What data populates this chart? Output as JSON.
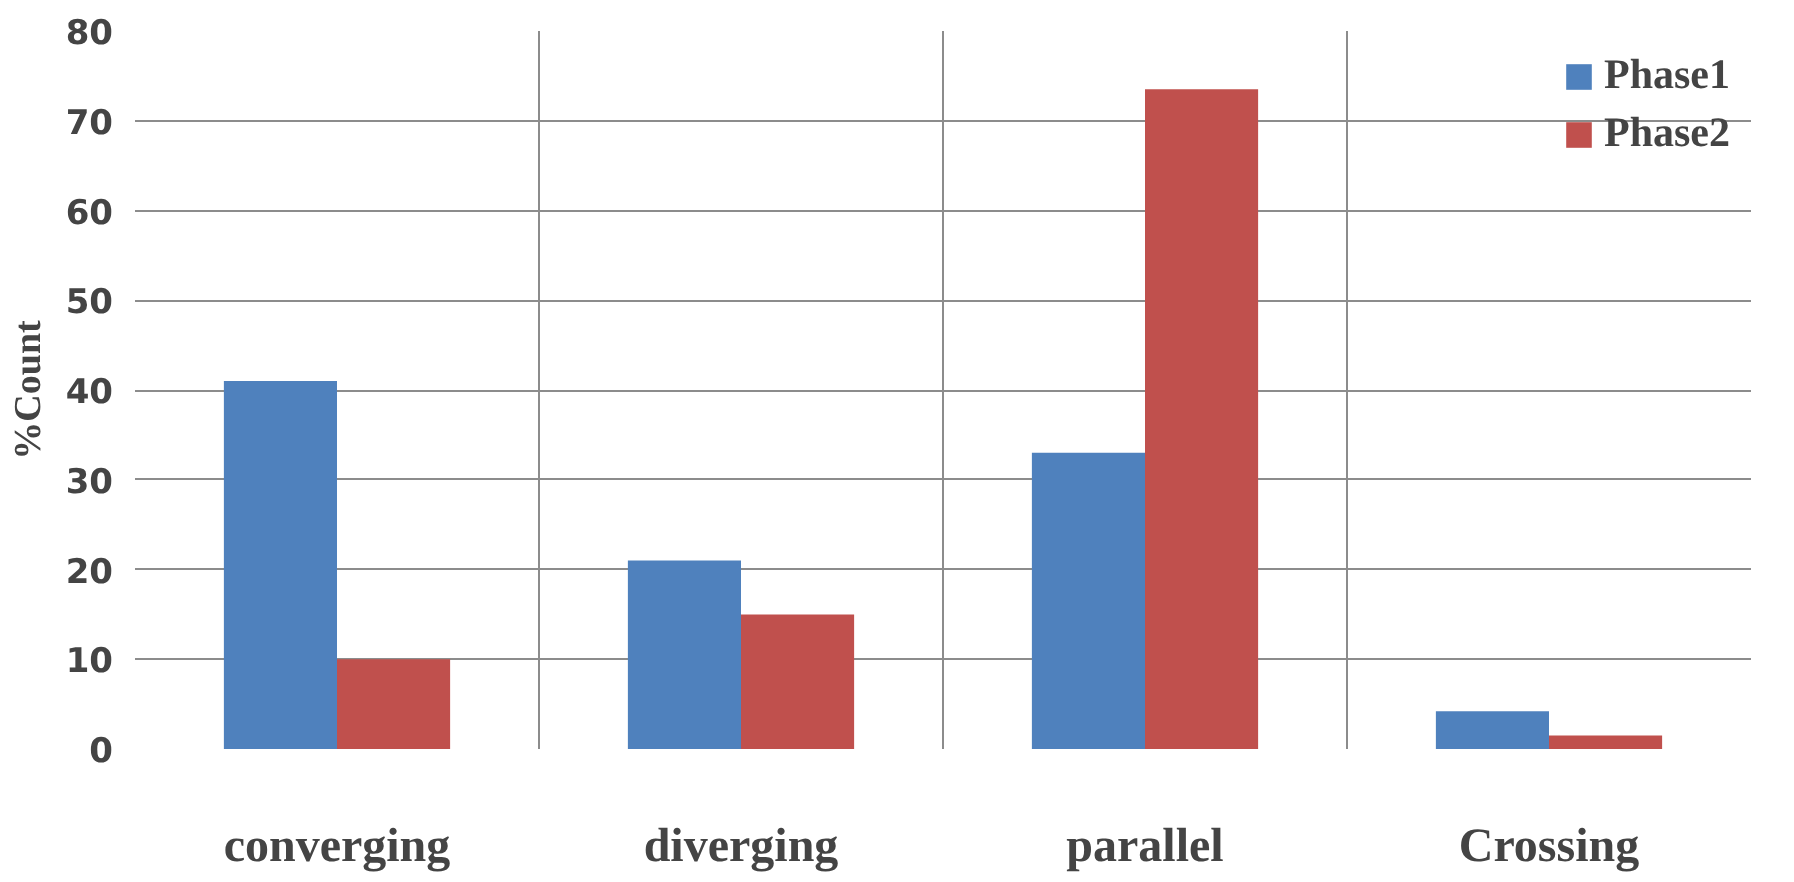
{
  "chart_data": {
    "type": "bar",
    "ylabel": "%Count",
    "categories": [
      "converging",
      "diverging",
      "parallel",
      "Crossing"
    ],
    "series": [
      {
        "name": "Phase1",
        "color": "#4f81bd",
        "values": [
          41,
          21,
          33,
          4.2
        ]
      },
      {
        "name": "Phase2",
        "color": "#c0504d",
        "values": [
          10,
          15,
          73.5,
          1.5
        ]
      }
    ],
    "ylim": [
      0,
      80
    ],
    "yticks": [
      0,
      10,
      20,
      30,
      40,
      50,
      60,
      70,
      80
    ],
    "grid": true,
    "legend": "top right"
  }
}
